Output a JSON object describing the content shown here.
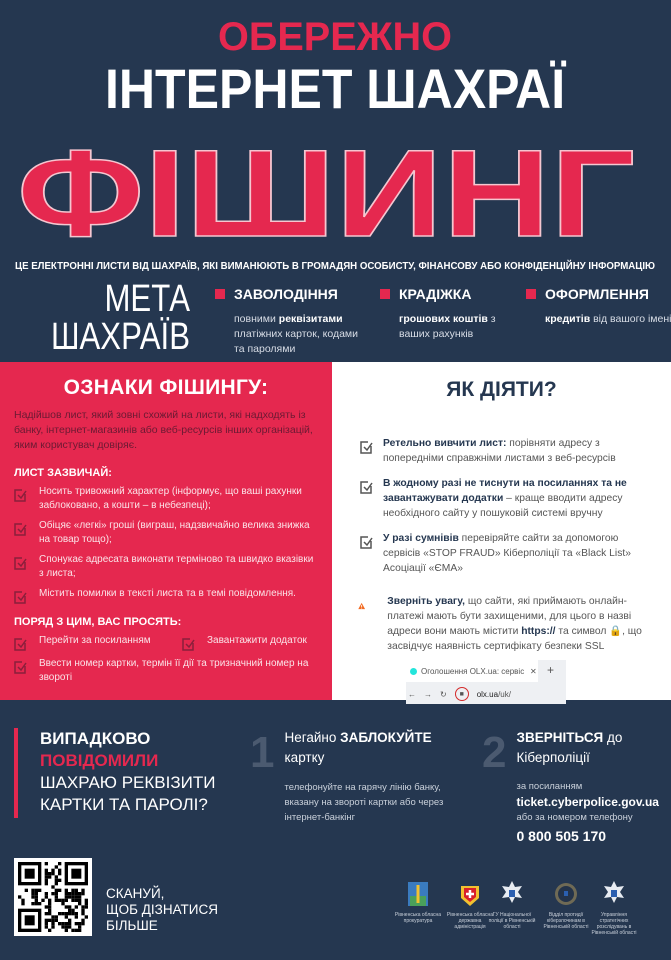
{
  "header": {
    "pre_title": "ОБЕРЕЖНО",
    "title": "ІНТЕРНЕТ ШАХРАЇ",
    "main_title": "ФІШИНГ",
    "tagline": "ЦЕ ЕЛЕКТРОННІ ЛИСТИ ВІД ШАХРАЇВ, ЯКІ ВИМАНЮЮТЬ В ГРОМАДЯН ОСОБИСТУ, ФІНАНСОВУ АБО КОНФІДЕНЦІЙНУ ІНФОРМАЦІЮ"
  },
  "goals": {
    "title_line1": "МЕТА",
    "title_line2": "ШАХРАЇВ",
    "items": [
      {
        "title": "ЗАВОЛОДІННЯ",
        "pre": "повними ",
        "bold": "реквізитами",
        "post": " платіжних карток, кодами та паролями"
      },
      {
        "title": "КРАДІЖКА",
        "pre": "",
        "bold": "грошових коштів",
        "post": " з ваших рахунків"
      },
      {
        "title": "ОФОРМЛЕННЯ",
        "pre": "",
        "bold": "кредитів",
        "post": " від вашого імені"
      }
    ]
  },
  "signs": {
    "title": "ОЗНАКИ ФІШИНГУ:",
    "intro": "Надійшов лист, який зовні схожий на листи, які надходять із банку, інтернет-магазинів або веб-ресурсів інших організацій, яким користувач довіряє.",
    "usually_title": "ЛИСТ ЗАЗВИЧАЙ:",
    "usually": [
      "Носить тривожний характер (інформує, що ваші рахунки заблоковано, а кошти – в небезпеці);",
      "Обіцяє «легкі» гроші (виграш, надзвичайно велика знижка на товар тощо);",
      "Спонукає адресата виконати терміново та швидко вказівки з листа;",
      "Містить помилки в тексті листа та в темі повідомлення."
    ],
    "asked_title": "ПОРЯД З ЦИМ, ВАС ПРОСЯТЬ:",
    "asked": [
      "Перейти за посиланням",
      "Завантажити додаток",
      "Ввести номер картки, термін її дії та тризначний номер на звороті"
    ]
  },
  "actions": {
    "title": "ЯК ДІЯТИ?",
    "items": [
      {
        "bold": "Ретельно вивчити лист:",
        "text": " порівняти адресу з попередніми справжніми листами з веб-ресурсів"
      },
      {
        "bold": "В жодному разі не тиснути на посиланнях та не завантажувати додатки",
        "text": " – краще вводити адресу необхідного сайту у пошуковій системі вручну"
      },
      {
        "bold": "У разі сумнівів",
        "text": " перевіряйте сайти за допомогою сервісів «STOP FRAUD» Кіберполіції та «Black List» Асоціації «ЄМА»"
      }
    ],
    "warning_bold": "Зверніть увагу,",
    "warning_text": " що сайти, які приймають онлайн-платежі мають бути захищеними, для цього в назві адреси вони мають містити ",
    "warning_https": "https://",
    "warning_text2": " та символ 🔒, що засвідчує наявність сертифікату безпеки SSL",
    "browser": {
      "tab_title": "Оголошення OLX.ua: сервіс ого",
      "url_host": "olx.ua",
      "url_path": "/uk/"
    }
  },
  "accident": {
    "line1": "ВИПАДКОВО",
    "line2": "ПОВІДОМИЛИ",
    "line3": "ШАХРАЮ РЕКВІЗИТИ",
    "line4": "КАРТКИ ТА ПАРОЛІ?"
  },
  "steps": [
    {
      "num": "1",
      "pre": "Негайно ",
      "bold": "ЗАБЛОКУЙТЕ",
      "post": " картку",
      "desc": "телефонуйте на гарячу лінію банку, вказану на звороті картки або через інтернет-банкінг"
    },
    {
      "num": "2",
      "bold": "ЗВЕРНІТЬСЯ",
      "post": " до Кіберполіції",
      "link_label": "за посиланням",
      "link": "ticket.cyberpolice.gov.ua",
      "phone_label": "або за номером телефону",
      "phone": "0 800 505 170"
    }
  ],
  "scan": {
    "line1": "СКАНУЙ,",
    "line2": "ЩОБ ДІЗНАТИСЯ",
    "line3": "БІЛЬШЕ"
  },
  "logos": [
    "Рівненська обласна прокуратура",
    "Рівненська обласна державна адміністрація",
    "ГУ Національної поліції в Рівненській області",
    "Відділ протидії кіберзлочинам в Рівненській області",
    "Управління стратегічних розслідувань в Рівненській області"
  ],
  "colors": {
    "background": "#253750",
    "accent": "#e5284f",
    "white_panel": "#ffffff",
    "warning": "#f26a21"
  }
}
